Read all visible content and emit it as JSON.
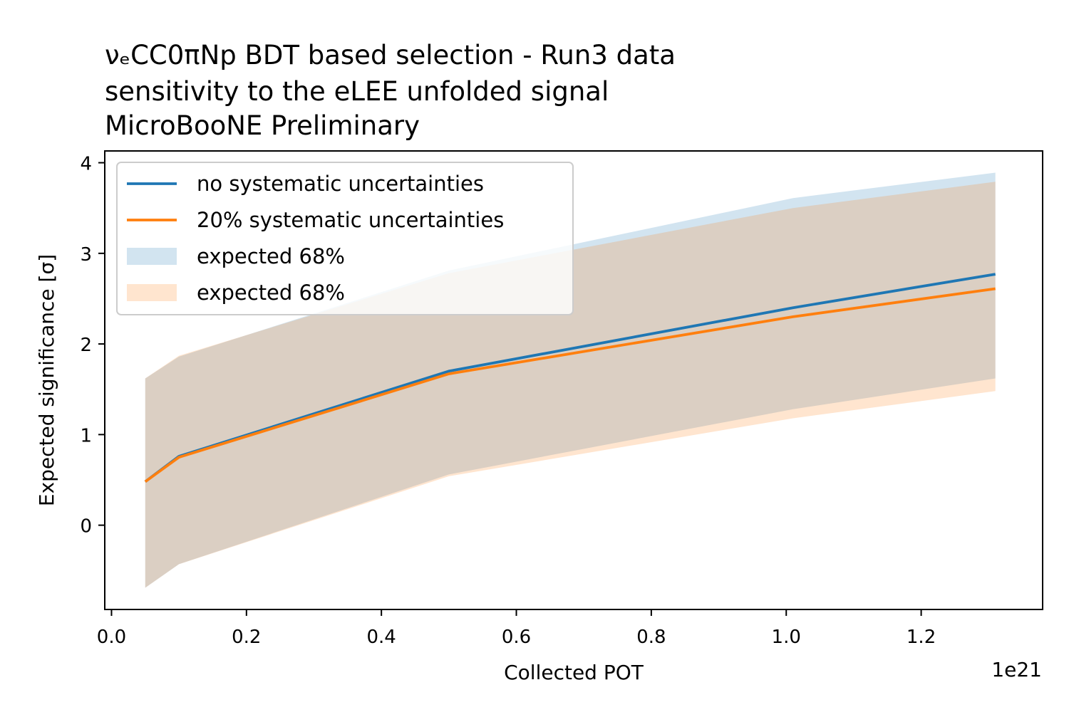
{
  "chart_data": {
    "type": "line",
    "title_lines": [
      "νₑCC0πNp BDT based selection - Run3 data",
      "sensitivity to the eLEE unfolded signal",
      "MicroBooNE Preliminary"
    ],
    "xlabel": "Collected POT",
    "ylabel": "Expected significance [σ]",
    "x_offset_label": "1e21",
    "x_scale_factor": 1e+21,
    "xlim": [
      -0.01,
      1.38
    ],
    "ylim": [
      -0.93,
      4.13
    ],
    "x_ticks": [
      0.0,
      0.2,
      0.4,
      0.6,
      0.8,
      1.0,
      1.2
    ],
    "x_tick_labels": [
      "0.0",
      "0.2",
      "0.4",
      "0.6",
      "0.8",
      "1.0",
      "1.2"
    ],
    "y_ticks": [
      0,
      1,
      2,
      3,
      4
    ],
    "y_tick_labels": [
      "0",
      "1",
      "2",
      "3",
      "4"
    ],
    "grid": false,
    "legend_position": "upper-left",
    "x": [
      0.05,
      0.1,
      0.5,
      1.01,
      1.31
    ],
    "series": [
      {
        "name": "no systematic uncertainties",
        "color": "#1f77b4",
        "values": [
          0.48,
          0.76,
          1.7,
          2.4,
          2.77
        ]
      },
      {
        "name": "20% systematic uncertainties",
        "color": "#ff7f0e",
        "values": [
          0.48,
          0.75,
          1.67,
          2.3,
          2.61
        ]
      }
    ],
    "bands": [
      {
        "name": "expected 68%",
        "color": "#1f77b4",
        "opacity": 0.2,
        "upper": [
          1.62,
          1.86,
          2.81,
          3.61,
          3.89
        ],
        "lower": [
          -0.69,
          -0.43,
          0.56,
          1.28,
          1.62
        ]
      },
      {
        "name": "expected 68%",
        "color": "#ff7f0e",
        "opacity": 0.2,
        "upper": [
          1.62,
          1.87,
          2.78,
          3.5,
          3.79
        ],
        "lower": [
          -0.69,
          -0.43,
          0.54,
          1.18,
          1.48
        ]
      }
    ]
  }
}
